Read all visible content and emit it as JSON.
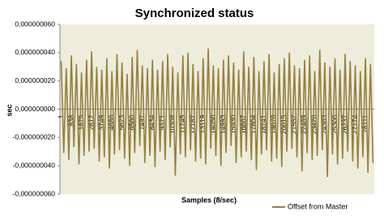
{
  "chart_data": {
    "type": "line",
    "title": "Synchronized status",
    "y_label": "sec",
    "x_label": "Samples (8/sec)",
    "categories": [
      "1",
      null,
      null,
      null,
      "938",
      null,
      null,
      null,
      "1875",
      null,
      null,
      null,
      "2812",
      null,
      null,
      null,
      "3749",
      null,
      null,
      null,
      "4686",
      null,
      null,
      null,
      "5623",
      null,
      null,
      null,
      "6560",
      null,
      null,
      null,
      "7497",
      null,
      null,
      null,
      "8434",
      null,
      null,
      null,
      "9371",
      null,
      null,
      null,
      "10308",
      null,
      null,
      null,
      "11245",
      null,
      null,
      null,
      "12182",
      null,
      null,
      null,
      "13119",
      null,
      null,
      null,
      "14056",
      null,
      null,
      null,
      "14993",
      null,
      null,
      null,
      "15930",
      null,
      null,
      null,
      "16867",
      null,
      null,
      null,
      "17804",
      null,
      null,
      null,
      "18741",
      null,
      null,
      null,
      "19678",
      null,
      null,
      null,
      "20615",
      null,
      null,
      null,
      "21552",
      null,
      null,
      null,
      "22489",
      null,
      null,
      null,
      "23426",
      null,
      null,
      null,
      "24363",
      null,
      null,
      null,
      "25300",
      null,
      null,
      null,
      "26237",
      null,
      null,
      null,
      "27174",
      null,
      null,
      null,
      "28111",
      null,
      null,
      null
    ],
    "series": [
      {
        "name": "Offset from Master",
        "color": "#948043",
        "values": [
          3.4e-08,
          -3.1e-08,
          2.9e-08,
          -3.6e-08,
          3.8e-08,
          -2.7e-08,
          3.2e-08,
          -3.9e-08,
          2.6e-08,
          -3.3e-08,
          3.5e-08,
          -3e-08,
          4.1e-08,
          -2.8e-08,
          3e-08,
          -3.7e-08,
          2.8e-08,
          -3.4e-08,
          3.6e-08,
          -4.2e-08,
          2.7e-08,
          -3.2e-08,
          3.9e-08,
          -2.9e-08,
          3.3e-08,
          -3.5e-08,
          2.5e-08,
          -4e-08,
          3.7e-08,
          -3.1e-08,
          4.2e-08,
          -2.6e-08,
          3.1e-08,
          -3.8e-08,
          2.9e-08,
          -3.3e-08,
          3.5e-08,
          -4.1e-08,
          2.8e-08,
          -3e-08,
          3.4e-08,
          -3.6e-08,
          3.9e-08,
          -2.7e-08,
          3e-08,
          -4.7e-08,
          2.6e-08,
          -3.2e-08,
          3.8e-08,
          -3.4e-08,
          4e-08,
          -2.9e-08,
          3.2e-08,
          -3.7e-08,
          2.7e-08,
          -3.5e-08,
          3.6e-08,
          -3.9e-08,
          4.3e-08,
          -2.8e-08,
          3.1e-08,
          -3.3e-08,
          2.9e-08,
          -4e-08,
          3.5e-08,
          -3.1e-08,
          3.8e-08,
          -2.6e-08,
          3.3e-08,
          -3.8e-08,
          2.8e-08,
          -3.4e-08,
          4.1e-08,
          -3e-08,
          3e-08,
          -3.6e-08,
          3.7e-08,
          -4.3e-08,
          2.7e-08,
          -3.2e-08,
          3.4e-08,
          -2.9e-08,
          3.9e-08,
          -3.7e-08,
          2.6e-08,
          -3.5e-08,
          3.2e-08,
          -4.1e-08,
          3.6e-08,
          -3e-08,
          4e-08,
          -2.8e-08,
          3.1e-08,
          -3.4e-08,
          2.9e-08,
          -4.4e-08,
          3.5e-08,
          -3.1e-08,
          3.8e-08,
          -3.6e-08,
          2.7e-08,
          -3.3e-08,
          4.2e-08,
          -2.9e-08,
          3.3e-08,
          -4.8e-08,
          3e-08,
          -3.2e-08,
          3.6e-08,
          -3.9e-08,
          2.8e-08,
          -3.5e-08,
          3.9e-08,
          -3e-08,
          3.4e-08,
          -3.7e-08,
          3.1e-08,
          -4.2e-08,
          2.7e-08,
          -3.4e-08,
          3.6e-08,
          -4.5e-08,
          3.2e-08,
          -3.8e-08
        ]
      }
    ],
    "ylim": [
      -6e-08,
      6e-08
    ],
    "yticks": [
      {
        "value": 6e-08,
        "label": "0,000000060"
      },
      {
        "value": 4e-08,
        "label": "0,000000040"
      },
      {
        "value": 2e-08,
        "label": "0,000000020"
      },
      {
        "value": 0,
        "label": "0,000000000"
      },
      {
        "value": -2e-08,
        "label": "-0,000000020"
      },
      {
        "value": -4e-08,
        "label": "-0,000000040"
      },
      {
        "value": -6e-08,
        "label": "-0,000000060"
      }
    ],
    "grid": false,
    "legend": "bottom-right"
  }
}
